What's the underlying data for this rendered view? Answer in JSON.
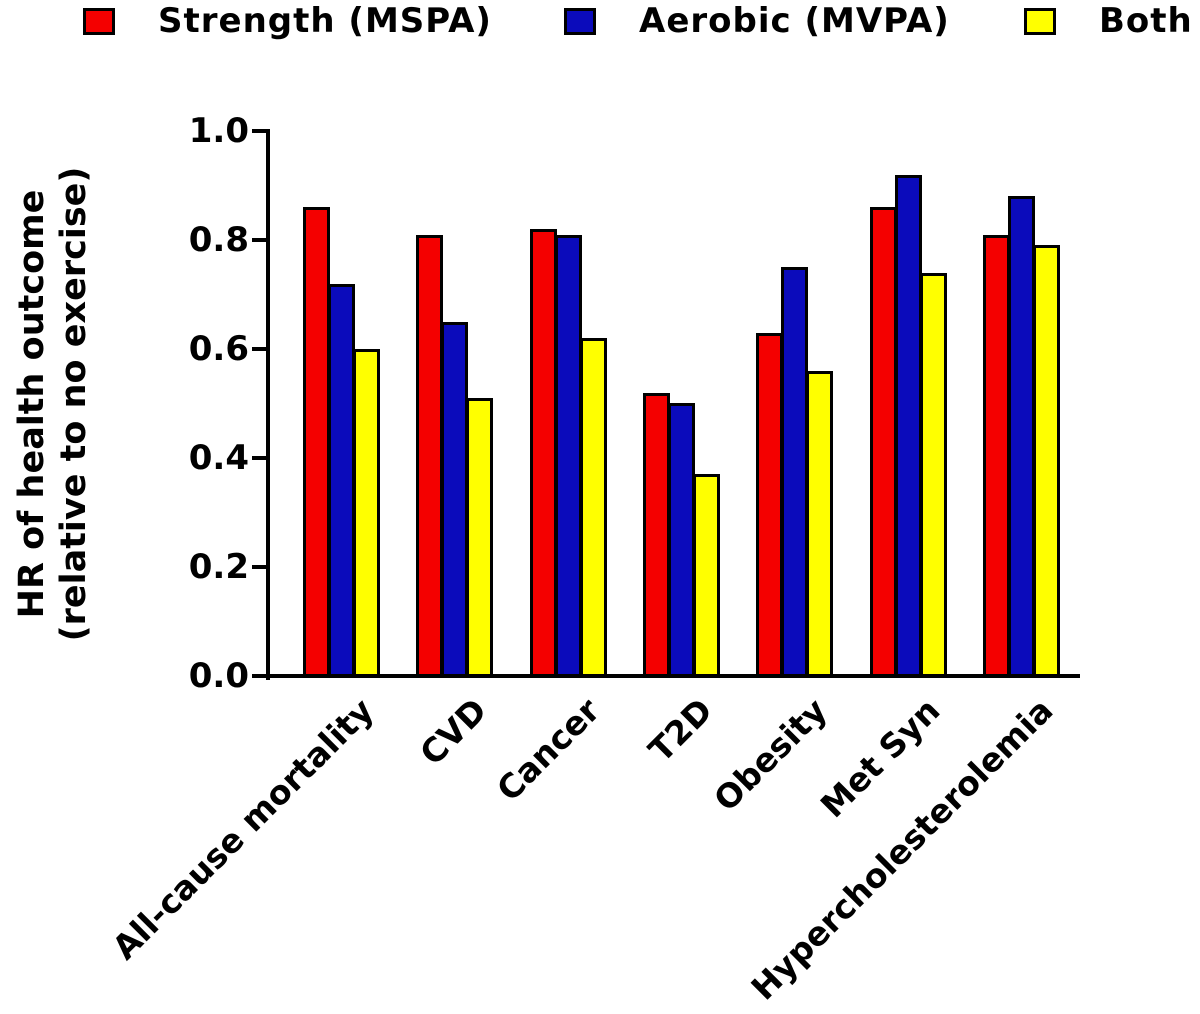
{
  "chart_data": {
    "type": "bar",
    "title": "",
    "categories": [
      "All-cause mortality",
      "CVD",
      "Cancer",
      "T2D",
      "Obesity",
      "Met Syn",
      "Hypercholesterolemia"
    ],
    "series": [
      {
        "name": "Strength (MSPA)",
        "color": "#f40000",
        "values": [
          0.86,
          0.81,
          0.82,
          0.52,
          0.63,
          0.86,
          0.81
        ]
      },
      {
        "name": "Aerobic (MVPA)",
        "color": "#0b0bbb",
        "values": [
          0.72,
          0.65,
          0.81,
          0.5,
          0.75,
          0.92,
          0.88
        ]
      },
      {
        "name": "Both",
        "color": "#ffff00",
        "values": [
          0.6,
          0.51,
          0.62,
          0.37,
          0.56,
          0.74,
          0.79
        ]
      }
    ],
    "ylabel_line1": "HR of health outcome",
    "ylabel_line2": "(relative to no exercise)",
    "xlabel": "",
    "ylim": [
      0.0,
      1.0
    ],
    "yticks": [
      "0.0",
      "0.2",
      "0.4",
      "0.6",
      "0.8",
      "1.0"
    ],
    "grid": false,
    "legend_position": "top",
    "axis_color": "#000000"
  }
}
